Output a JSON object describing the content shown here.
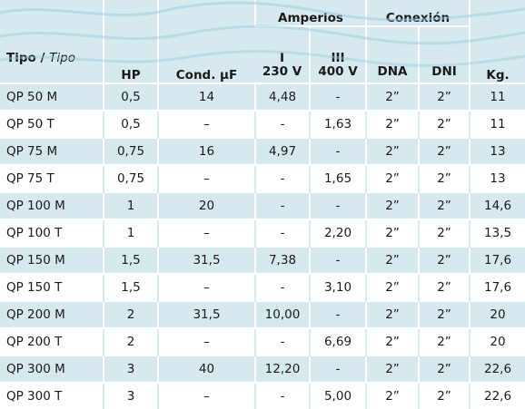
{
  "header": {
    "tipo": "Tipo",
    "tipo_italic": "Tipo",
    "hp": "HP",
    "cond": "Cond. μF",
    "amperios": "Amperios",
    "amp_i": "I",
    "amp_i_v": "230 V",
    "amp_iii": "III",
    "amp_iii_v": "400 V",
    "conexion": "Conexión",
    "dna": "DNA",
    "dni": "DNI",
    "kg": "Kg."
  },
  "rows": [
    {
      "tipo": "QP 50 M",
      "hp": "0,5",
      "cond": "14",
      "a1": "4,48",
      "a3": "-",
      "dna": "2”",
      "dni": "2”",
      "kg": "11"
    },
    {
      "tipo": "QP 50 T",
      "hp": "0,5",
      "cond": "–",
      "a1": "-",
      "a3": "1,63",
      "dna": "2”",
      "dni": "2”",
      "kg": "11"
    },
    {
      "tipo": "QP 75 M",
      "hp": "0,75",
      "cond": "16",
      "a1": "4,97",
      "a3": "-",
      "dna": "2”",
      "dni": "2”",
      "kg": "13"
    },
    {
      "tipo": "QP 75 T",
      "hp": "0,75",
      "cond": "–",
      "a1": "-",
      "a3": "1,65",
      "dna": "2”",
      "dni": "2”",
      "kg": "13"
    },
    {
      "tipo": "QP 100 M",
      "hp": "1",
      "cond": "20",
      "a1": "-",
      "a3": "-",
      "dna": "2”",
      "dni": "2”",
      "kg": "14,6"
    },
    {
      "tipo": "QP 100 T",
      "hp": "1",
      "cond": "–",
      "a1": "-",
      "a3": "2,20",
      "dna": "2”",
      "dni": "2”",
      "kg": "13,5"
    },
    {
      "tipo": "QP 150 M",
      "hp": "1,5",
      "cond": "31,5",
      "a1": "7,38",
      "a3": "-",
      "dna": "2”",
      "dni": "2”",
      "kg": "17,6"
    },
    {
      "tipo": "QP 150 T",
      "hp": "1,5",
      "cond": "–",
      "a1": "-",
      "a3": "3,10",
      "dna": "2”",
      "dni": "2”",
      "kg": "17,6"
    },
    {
      "tipo": "QP 200 M",
      "hp": "2",
      "cond": "31,5",
      "a1": "10,00",
      "a3": "-",
      "dna": "2”",
      "dni": "2”",
      "kg": "20"
    },
    {
      "tipo": "QP 200 T",
      "hp": "2",
      "cond": "–",
      "a1": "-",
      "a3": "6,69",
      "dna": "2”",
      "dni": "2”",
      "kg": "20"
    },
    {
      "tipo": "QP 300 M",
      "hp": "3",
      "cond": "40",
      "a1": "12,20",
      "a3": "-",
      "dna": "2”",
      "dni": "2”",
      "kg": "22,6"
    },
    {
      "tipo": "QP 300 T",
      "hp": "3",
      "cond": "–",
      "a1": "-",
      "a3": "5,00",
      "dna": "2”",
      "dni": "2”",
      "kg": "22,6"
    }
  ],
  "colors": {
    "band": "#d6e9ef",
    "wave": "#9ccdde"
  }
}
